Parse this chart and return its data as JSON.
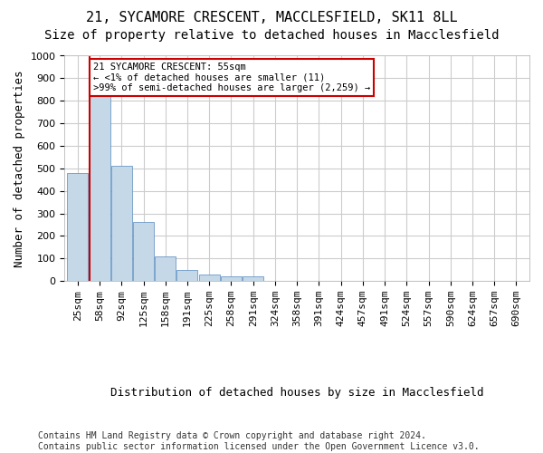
{
  "title1": "21, SYCAMORE CRESCENT, MACCLESFIELD, SK11 8LL",
  "title2": "Size of property relative to detached houses in Macclesfield",
  "xlabel": "Distribution of detached houses by size in Macclesfield",
  "ylabel": "Number of detached properties",
  "footer": "Contains HM Land Registry data © Crown copyright and database right 2024.\nContains public sector information licensed under the Open Government Licence v3.0.",
  "annotation_title": "21 SYCAMORE CRESCENT: 55sqm",
  "annotation_line1": "← <1% of detached houses are smaller (11)",
  "annotation_line2": ">99% of semi-detached houses are larger (2,259) →",
  "bar_values": [
    480,
    830,
    510,
    260,
    110,
    50,
    30,
    20,
    20,
    0,
    0,
    0,
    0,
    0,
    0,
    0,
    0,
    0,
    0,
    0,
    0
  ],
  "bar_labels": [
    "25sqm",
    "58sqm",
    "92sqm",
    "125sqm",
    "158sqm",
    "191sqm",
    "225sqm",
    "258sqm",
    "291sqm",
    "324sqm",
    "358sqm",
    "391sqm",
    "424sqm",
    "457sqm",
    "491sqm",
    "524sqm",
    "557sqm",
    "590sqm",
    "624sqm",
    "657sqm",
    "690sqm"
  ],
  "bar_color": "#c5d8e8",
  "bar_edge_color": "#5588bb",
  "annotation_box_color": "#cc0000",
  "ylim": [
    0,
    1000
  ],
  "yticks": [
    0,
    100,
    200,
    300,
    400,
    500,
    600,
    700,
    800,
    900,
    1000
  ],
  "grid_color": "#cccccc",
  "background_color": "#ffffff",
  "title1_fontsize": 11,
  "title2_fontsize": 10,
  "xlabel_fontsize": 9,
  "ylabel_fontsize": 9,
  "tick_fontsize": 8,
  "footer_fontsize": 7
}
